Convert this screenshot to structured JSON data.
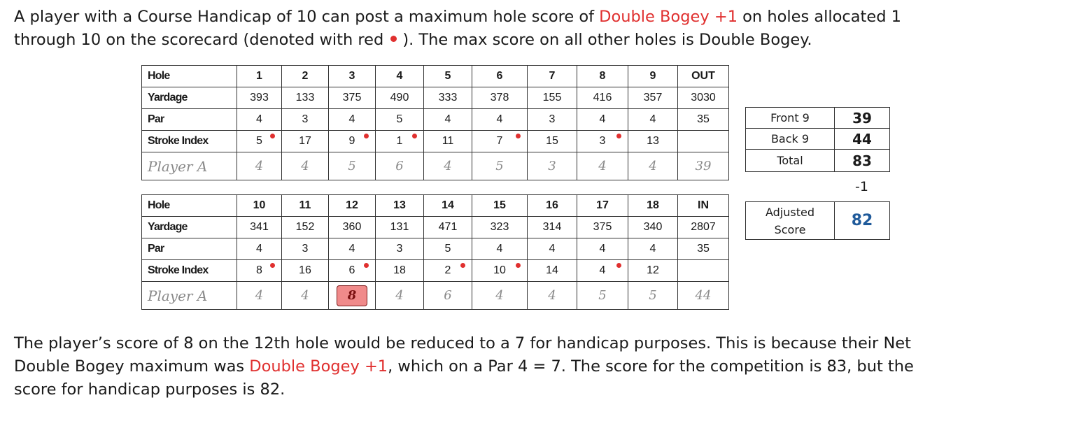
{
  "intro": {
    "line1_a": "A player with a Course Handicap of 10 can post a maximum hole score of ",
    "line1_red": "Double Bogey +1",
    "line1_b": " on holes allocated 1",
    "line2_a": "through 10 on the scorecard (denoted with red",
    "line2_b": "). The max score on all other holes is Double Bogey."
  },
  "front_nine": {
    "labels": [
      "Hole",
      "Yardage",
      "Par",
      "Stroke Index",
      "Player A"
    ],
    "holes": [
      "1",
      "2",
      "3",
      "4",
      "5",
      "6",
      "7",
      "8",
      "9",
      "OUT"
    ],
    "yardage": [
      "393",
      "133",
      "375",
      "490",
      "333",
      "378",
      "155",
      "416",
      "357",
      "3030"
    ],
    "par": [
      "4",
      "3",
      "4",
      "5",
      "4",
      "4",
      "3",
      "4",
      "4",
      "35"
    ],
    "stroke_index": [
      "5",
      "17",
      "9",
      "1",
      "11",
      "7",
      "15",
      "3",
      "13",
      ""
    ],
    "stroke_dot": [
      true,
      false,
      true,
      true,
      false,
      true,
      false,
      true,
      false,
      false
    ],
    "player": [
      "4",
      "4",
      "5",
      "6",
      "4",
      "5",
      "3",
      "4",
      "4",
      "39"
    ],
    "highlight": [
      false,
      false,
      false,
      false,
      false,
      false,
      false,
      false,
      false,
      false
    ]
  },
  "back_nine": {
    "labels": [
      "Hole",
      "Yardage",
      "Par",
      "Stroke Index",
      "Player A"
    ],
    "holes": [
      "10",
      "11",
      "12",
      "13",
      "14",
      "15",
      "16",
      "17",
      "18",
      "IN"
    ],
    "yardage": [
      "341",
      "152",
      "360",
      "131",
      "471",
      "323",
      "314",
      "375",
      "340",
      "2807"
    ],
    "par": [
      "4",
      "3",
      "4",
      "3",
      "5",
      "4",
      "4",
      "4",
      "4",
      "35"
    ],
    "stroke_index": [
      "8",
      "16",
      "6",
      "18",
      "2",
      "10",
      "14",
      "4",
      "12",
      ""
    ],
    "stroke_dot": [
      true,
      false,
      true,
      false,
      true,
      true,
      false,
      true,
      false,
      false
    ],
    "player": [
      "4",
      "4",
      "8",
      "4",
      "6",
      "4",
      "4",
      "5",
      "5",
      "44"
    ],
    "highlight": [
      false,
      false,
      true,
      false,
      false,
      false,
      false,
      false,
      false,
      false
    ]
  },
  "summary": {
    "rows": [
      {
        "label": "Front 9",
        "value": "39"
      },
      {
        "label": "Back 9",
        "value": "44"
      },
      {
        "label": "Total",
        "value": "83"
      }
    ],
    "adjustment": "-1",
    "adjusted_label_1": "Adjusted",
    "adjusted_label_2": "Score",
    "adjusted_value": "82"
  },
  "outro": {
    "line1": "The player’s score of 8 on the 12th hole would be reduced to a 7 for handicap purposes. This is because their Net",
    "line2_a": "Double Bogey maximum was ",
    "line2_red": "Double Bogey +1",
    "line2_b": ", which on a Par 4 = 7.  The score for the competition is 83, but the",
    "line3": "score for handicap purposes is 82."
  },
  "colors": {
    "accent_red": "#e0302f",
    "adjusted_blue": "#1f5a9a",
    "highlight_fill": "#f08a8a"
  }
}
